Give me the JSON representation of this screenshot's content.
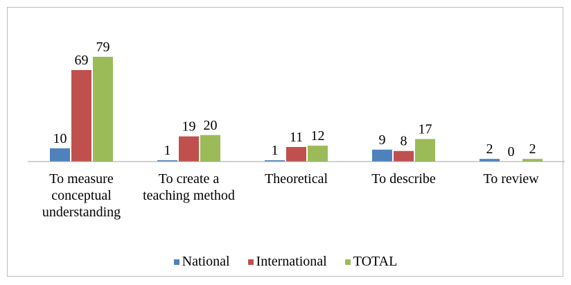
{
  "chart_data": {
    "type": "bar",
    "categories": [
      "To measure conceptual understanding",
      "To create a teaching method",
      "Theoretical",
      "To describe",
      "To review"
    ],
    "series": [
      {
        "name": "National",
        "color": "#4f81bd",
        "values": [
          10,
          1,
          1,
          9,
          2
        ]
      },
      {
        "name": "International",
        "color": "#c0504d",
        "values": [
          69,
          19,
          11,
          8,
          0
        ]
      },
      {
        "name": "TOTAL",
        "color": "#9bbb59",
        "values": [
          79,
          20,
          12,
          17,
          2
        ]
      }
    ],
    "ylim": [
      0,
      80
    ],
    "grid": false,
    "legend": "bottom"
  }
}
